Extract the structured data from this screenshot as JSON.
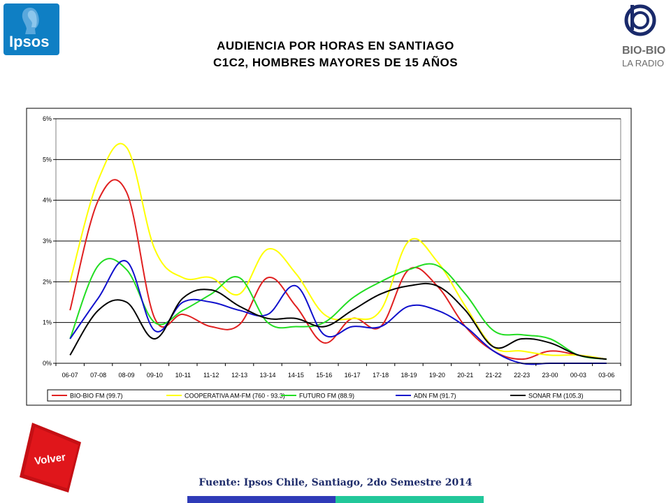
{
  "logos": {
    "ipsos_text": "Ipsos",
    "biobio_text": "BIO-BIO",
    "biobio_sub": "LA RADIO"
  },
  "header": {
    "title_line1": "AUDIENCIA POR HORAS EN SANTIAGO",
    "title_line2": "C1C2, HOMBRES MAYORES DE 15 AÑOS"
  },
  "buttons": {
    "volver_label": "Volver"
  },
  "footer": {
    "source": "Fuente: Ipsos Chile, Santiago, 2do Semestre 2014"
  },
  "colors": {
    "ipsos_blue": "#0f7fc4",
    "volver_red": "#e0161b",
    "bar_blue": "#2f3bb8",
    "bar_green": "#22c79a"
  },
  "chart_data": {
    "type": "line",
    "title": "",
    "xlabel": "",
    "ylabel": "",
    "ylim": [
      0,
      6
    ],
    "yticks": [
      "0%",
      "1%",
      "2%",
      "3%",
      "4%",
      "5%",
      "6%"
    ],
    "grid": true,
    "legend_position": "bottom",
    "categories": [
      "06-07",
      "07-08",
      "08-09",
      "09-10",
      "10-11",
      "11-12",
      "12-13",
      "13-14",
      "14-15",
      "15-16",
      "16-17",
      "17-18",
      "18-19",
      "19-20",
      "20-21",
      "21-22",
      "22-23",
      "23-00",
      "00-03",
      "03-06"
    ],
    "series": [
      {
        "name": "BIO-BIO FM (99.7)",
        "color": "#e02020",
        "values": [
          1.3,
          4.0,
          4.2,
          1.1,
          1.2,
          0.9,
          0.95,
          2.1,
          1.4,
          0.5,
          1.1,
          0.9,
          2.3,
          1.9,
          0.9,
          0.3,
          0.1,
          0.3,
          0.2,
          0.1
        ]
      },
      {
        "name": "COOPERATIVA AM-FM (760 - 93.3)",
        "color": "#ffff00",
        "values": [
          2.0,
          4.5,
          5.3,
          2.8,
          2.1,
          2.1,
          1.7,
          2.8,
          2.2,
          1.2,
          1.1,
          1.3,
          3.0,
          2.5,
          1.4,
          0.4,
          0.3,
          0.2,
          0.2,
          0.1
        ]
      },
      {
        "name": "FUTURO FM (88.9)",
        "color": "#22dd22",
        "values": [
          0.6,
          2.4,
          2.3,
          1.0,
          1.3,
          1.7,
          2.1,
          1.0,
          0.9,
          1.0,
          1.6,
          2.0,
          2.3,
          2.4,
          1.7,
          0.8,
          0.7,
          0.6,
          0.2,
          0.1
        ]
      },
      {
        "name": "ADN FM (91.7)",
        "color": "#1010cc",
        "values": [
          0.6,
          1.6,
          2.5,
          0.8,
          1.5,
          1.5,
          1.3,
          1.2,
          1.9,
          0.7,
          0.9,
          0.9,
          1.4,
          1.3,
          0.9,
          0.3,
          0.0,
          0.0,
          0.0,
          0.0
        ]
      },
      {
        "name": "SONAR FM (105.3)",
        "color": "#000000",
        "values": [
          0.2,
          1.3,
          1.5,
          0.6,
          1.6,
          1.8,
          1.4,
          1.1,
          1.1,
          0.9,
          1.3,
          1.7,
          1.9,
          1.9,
          1.3,
          0.4,
          0.6,
          0.5,
          0.2,
          0.1
        ]
      }
    ]
  }
}
